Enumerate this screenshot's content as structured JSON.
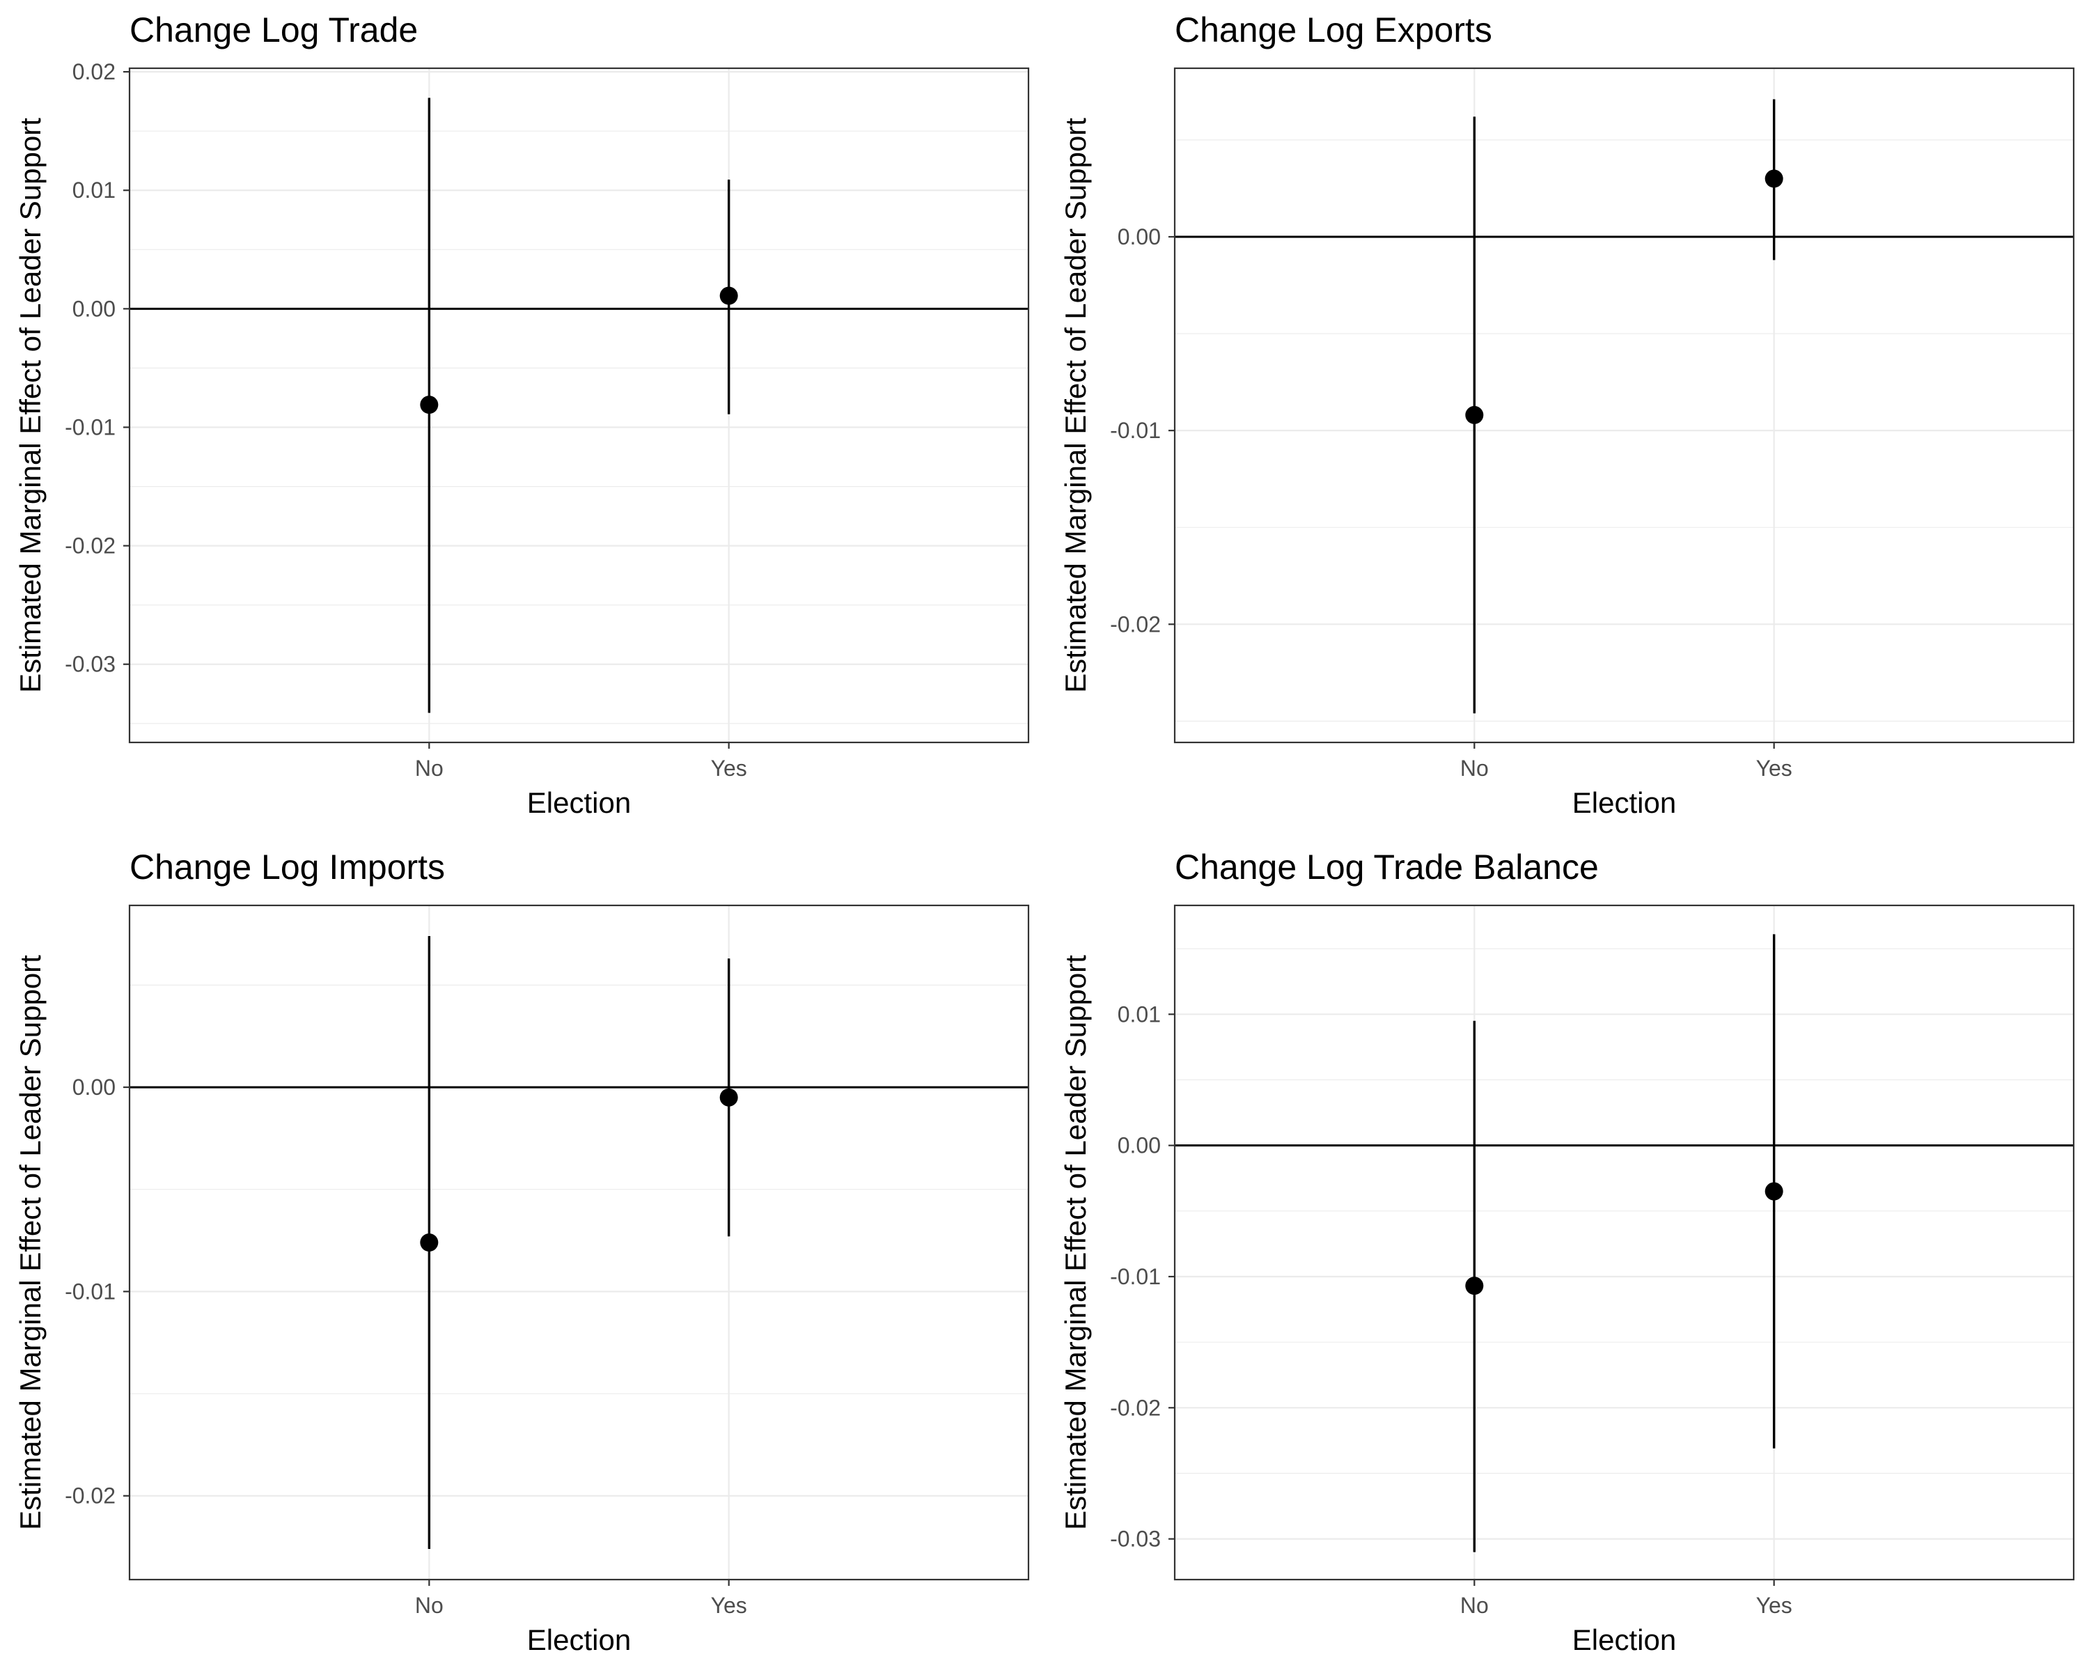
{
  "chart_data": [
    {
      "type": "scatter",
      "title": "Change Log Trade",
      "xlabel": "Election",
      "ylabel": "Estimated Marginal Effect of Leader Support",
      "categories": [
        "No",
        "Yes"
      ],
      "values": [
        -0.0081,
        0.0011
      ],
      "lower": [
        -0.0341,
        -0.0089
      ],
      "upper": [
        0.0178,
        0.0109
      ],
      "ylim": [
        -0.0366,
        0.0203
      ],
      "yticks": [
        -0.03,
        -0.02,
        -0.01,
        0.0,
        0.01,
        0.02
      ],
      "ytick_labels": [
        "-0.03",
        "-0.02",
        "-0.01",
        "0.00",
        "0.01",
        "0.02"
      ],
      "reference_line": 0,
      "grid": true
    },
    {
      "type": "scatter",
      "title": "Change Log Exports",
      "xlabel": "Election",
      "ylabel": "Estimated Marginal Effect of Leader Support",
      "categories": [
        "No",
        "Yes"
      ],
      "values": [
        -0.0092,
        0.003
      ],
      "lower": [
        -0.0246,
        -0.0012
      ],
      "upper": [
        0.0062,
        0.0071
      ],
      "ylim": [
        -0.0261,
        0.0087
      ],
      "yticks": [
        -0.02,
        -0.01,
        0.0
      ],
      "ytick_labels": [
        "-0.02",
        "-0.01",
        "0.00"
      ],
      "reference_line": 0,
      "grid": true
    },
    {
      "type": "scatter",
      "title": "Change Log Imports",
      "xlabel": "Election",
      "ylabel": "Estimated Marginal Effect of Leader Support",
      "categories": [
        "No",
        "Yes"
      ],
      "values": [
        -0.0076,
        -0.0005
      ],
      "lower": [
        -0.0226,
        -0.0073
      ],
      "upper": [
        0.0074,
        0.0063
      ],
      "ylim": [
        -0.0241,
        0.0089
      ],
      "yticks": [
        -0.02,
        -0.01,
        0.0
      ],
      "ytick_labels": [
        "-0.02",
        "-0.01",
        "0.00"
      ],
      "reference_line": 0,
      "grid": true
    },
    {
      "type": "scatter",
      "title": "Change Log Trade Balance",
      "xlabel": "Election",
      "ylabel": "Estimated Marginal Effect of Leader Support",
      "categories": [
        "No",
        "Yes"
      ],
      "values": [
        -0.0107,
        -0.0035
      ],
      "lower": [
        -0.031,
        -0.0231
      ],
      "upper": [
        0.0095,
        0.0161
      ],
      "ylim": [
        -0.0331,
        0.0183
      ],
      "yticks": [
        -0.03,
        -0.02,
        -0.01,
        0.0,
        0.01
      ],
      "ytick_labels": [
        "-0.03",
        "-0.02",
        "-0.01",
        "0.00",
        "0.01"
      ],
      "reference_line": 0,
      "grid": true
    }
  ]
}
